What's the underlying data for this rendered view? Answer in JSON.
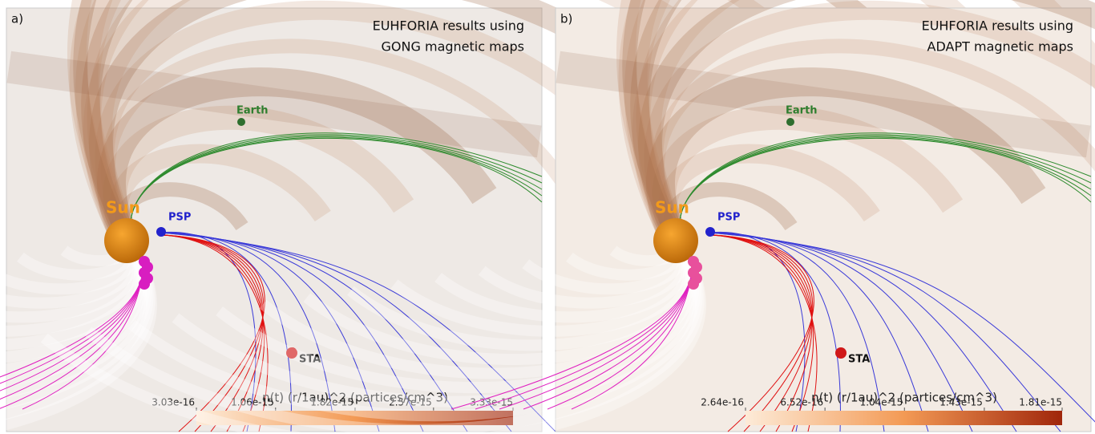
{
  "panels": [
    {
      "label": "a)",
      "title": [
        "EUHFORIA results using",
        "GONG magnetic maps"
      ],
      "bodies": {
        "sun": "Sun",
        "psp": "PSP",
        "earth": "Earth",
        "sta": "STA"
      },
      "colorbar": {
        "title": "n(t) (r/1au)^2 (partices/cm^3)",
        "lim": [
          3.03e-16,
          3.33e-15
        ],
        "ticks": [
          {
            "value": 3.03e-16,
            "label": "3.03e-16"
          },
          {
            "value": 1.06e-15,
            "label": "1.06e-15"
          },
          {
            "value": 1.82e-15,
            "label": "1.82e-15"
          },
          {
            "value": 2.57e-15,
            "label": "2.57e-15"
          },
          {
            "value": 3.33e-15,
            "label": "3.33e-15"
          }
        ]
      }
    },
    {
      "label": "b)",
      "title": [
        "EUHFORIA results using",
        "ADAPT magnetic maps"
      ],
      "bodies": {
        "sun": "Sun",
        "psp": "PSP",
        "earth": "Earth",
        "sta": "STA"
      },
      "colorbar": {
        "title": "n(t) (r/1au)^2 (partices/cm^3)",
        "lim": [
          2.64e-16,
          1.81e-15
        ],
        "ticks": [
          {
            "value": 2.64e-16,
            "label": "2.64e-16"
          },
          {
            "value": 6.52e-16,
            "label": "6.52e-16"
          },
          {
            "value": 1.04e-15,
            "label": "1.04e-15"
          },
          {
            "value": 1.43e-15,
            "label": "1.43e-15"
          },
          {
            "value": 1.81e-15,
            "label": "1.81e-15"
          }
        ]
      }
    }
  ]
}
